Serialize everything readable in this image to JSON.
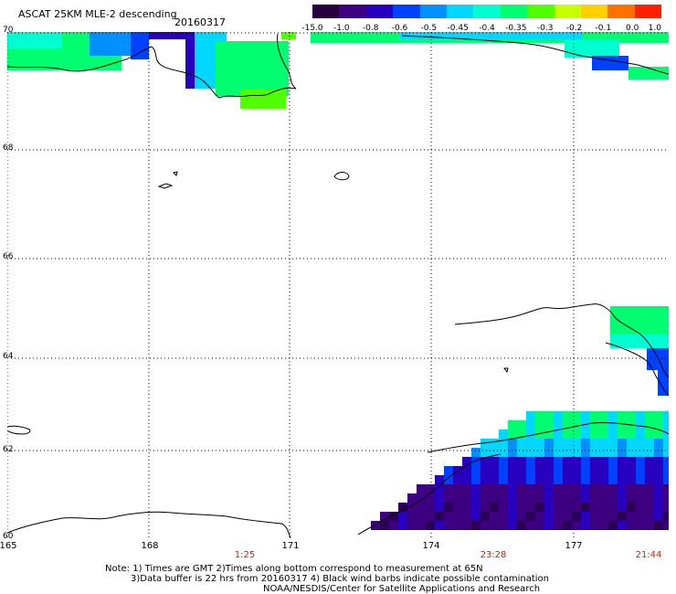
{
  "header": {
    "title": "ASCAT 25KM MLE-2 descending",
    "date": "20160317"
  },
  "colorbar": {
    "labels": [
      "-15.0",
      "-1.0",
      "-0.8",
      "-0.6",
      "-0.5",
      "-0.45",
      "-0.4",
      "-0.35",
      "-0.3",
      "-0.2",
      "-0.1",
      "0.0",
      "1.0"
    ],
    "colors": [
      "#2a003f",
      "#3c0080",
      "#2800c0",
      "#0040ff",
      "#0090ff",
      "#00d8ff",
      "#00ffd0",
      "#00ff70",
      "#50ff00",
      "#c8ff00",
      "#ffd000",
      "#ff7000",
      "#ff2000"
    ]
  },
  "map": {
    "lat_labels": [
      "70",
      "68",
      "66",
      "64",
      "62",
      "60"
    ],
    "lon_labels": [
      "165",
      "168",
      "171",
      "174",
      "177"
    ],
    "time_labels": [
      "1:25",
      "23:28",
      "21:44"
    ],
    "colors": {
      "dark": "#2a0055",
      "purple": "#3c0080",
      "indigo": "#2800c0",
      "blue": "#0040ff",
      "azure": "#0090ff",
      "cyan": "#00d8ff",
      "aqua": "#00ffd0",
      "green": "#00ff70",
      "lime": "#50ff00"
    }
  },
  "notes": {
    "line1": "Note: 1) Times are GMT 2)Times along bottom correspond to measurement at 65N",
    "line2": "3)Data buffer is 22 hrs from 20160317 4) Black wind barbs indicate possible contamination",
    "line3": "NOAA/NESDIS/Center for Satellite Applications and Research"
  }
}
